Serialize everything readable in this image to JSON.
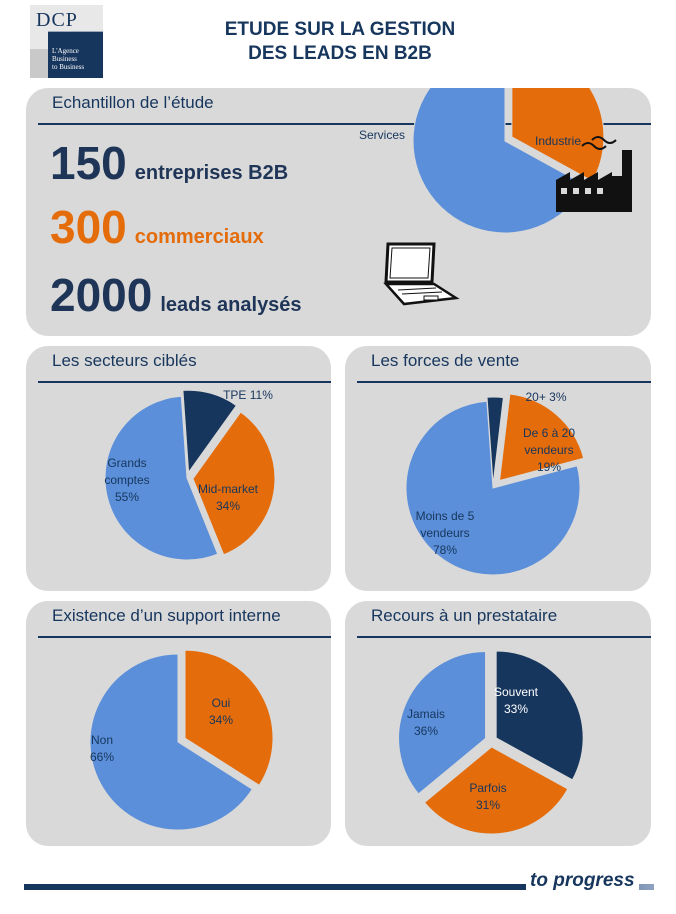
{
  "logo": {
    "brand": "DCP",
    "tagline_lines": [
      "L'Agence",
      "Business",
      "to Business"
    ]
  },
  "title": {
    "line1": "ETUDE SUR LA GESTION",
    "line2": "DES LEADS EN B2B"
  },
  "sample": {
    "heading": "Echantillon de l’étude",
    "stats": [
      {
        "number": "150",
        "label": "entreprises B2B",
        "color": "#1f3557"
      },
      {
        "number": "300",
        "label": "commerciaux",
        "color": "#e46c0a"
      },
      {
        "number": "2000",
        "label": "leads analysés",
        "color": "#1f3557"
      }
    ],
    "icons": [
      "laptop-icon",
      "factory-icon"
    ]
  },
  "colors": {
    "navy": "#17365d",
    "orange": "#e46c0a",
    "blue": "#5b8fd9",
    "panel": "#d9d9d9"
  },
  "chart_data": [
    {
      "id": "sample",
      "type": "pie",
      "categories": [
        "Industrie",
        "Services"
      ],
      "values": [
        33,
        67
      ],
      "colors": [
        "#e46c0a",
        "#5b8fd9"
      ],
      "labels": [
        [
          "Industrie"
        ],
        [
          "Services"
        ]
      ]
    },
    {
      "id": "sectors",
      "type": "pie",
      "title": "Les secteurs ciblés",
      "categories": [
        "TPE",
        "Mid-market",
        "Grands comptes"
      ],
      "values": [
        11,
        34,
        55
      ],
      "colors": [
        "#17365d",
        "#e46c0a",
        "#5b8fd9"
      ],
      "labels": [
        [
          "TPE 11%"
        ],
        [
          "Mid-market",
          "34%"
        ],
        [
          "Grands",
          "comptes",
          "55%"
        ]
      ]
    },
    {
      "id": "sales",
      "type": "pie",
      "title": "Les forces de vente",
      "categories": [
        "20+",
        "De 6 à 20 vendeurs",
        "Moins de 5 vendeurs"
      ],
      "values": [
        3,
        19,
        78
      ],
      "colors": [
        "#17365d",
        "#e46c0a",
        "#5b8fd9"
      ],
      "labels": [
        [
          "20+ 3%"
        ],
        [
          "De 6 à 20",
          "vendeurs",
          "19%"
        ],
        [
          "Moins de 5",
          "vendeurs",
          "78%"
        ]
      ]
    },
    {
      "id": "support",
      "type": "pie",
      "title": "Existence d’un support interne",
      "categories": [
        "Oui",
        "Non"
      ],
      "values": [
        34,
        66
      ],
      "colors": [
        "#e46c0a",
        "#5b8fd9"
      ],
      "labels": [
        [
          "Oui",
          "34%"
        ],
        [
          "Non",
          "66%"
        ]
      ]
    },
    {
      "id": "provider",
      "type": "pie",
      "title": "Recours à un prestataire",
      "categories": [
        "Souvent",
        "Parfois",
        "Jamais"
      ],
      "values": [
        33,
        31,
        36
      ],
      "colors": [
        "#17365d",
        "#e46c0a",
        "#5b8fd9"
      ],
      "labels": [
        [
          "Souvent",
          "33%"
        ],
        [
          "Parfois",
          "31%"
        ],
        [
          "Jamais",
          "36%"
        ]
      ]
    }
  ],
  "footer": {
    "text": "to progress"
  }
}
